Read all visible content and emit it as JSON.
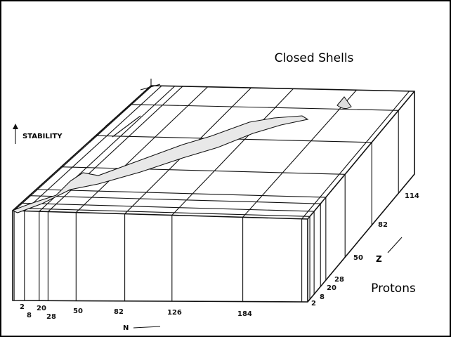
{
  "labels": {
    "title": "Closed Shells",
    "stability": "STABILITY",
    "protons": "Protons",
    "n_axis": "N",
    "z_axis": "Z"
  },
  "n_ticks": [
    "2",
    "8",
    "20",
    "28",
    "50",
    "82",
    "126",
    "184"
  ],
  "z_ticks": [
    "2",
    "8",
    "20",
    "28",
    "50",
    "82",
    "114"
  ]
}
